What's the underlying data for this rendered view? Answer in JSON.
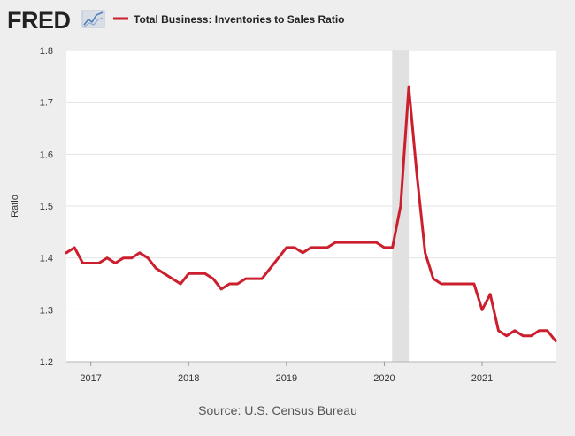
{
  "header": {
    "logo_text": "FRED",
    "logo_icon": "fred-chart-icon",
    "line_color": "#cc1f2d"
  },
  "chart_data": {
    "type": "line",
    "title": "Total Business: Inventories to Sales Ratio",
    "xlabel": "",
    "ylabel": "Ratio",
    "source": "Source: U.S. Census Bureau",
    "ylim": [
      1.2,
      1.8
    ],
    "yticks": [
      1.2,
      1.3,
      1.4,
      1.5,
      1.6,
      1.7,
      1.8
    ],
    "ytick_labels": [
      "1.2",
      "1.3",
      "1.4",
      "1.5",
      "1.6",
      "1.7",
      "1.8"
    ],
    "xlim": [
      2016.75,
      2021.75
    ],
    "xticks": [
      2017,
      2018,
      2019,
      2020,
      2021
    ],
    "xtick_labels": [
      "2017",
      "2018",
      "2019",
      "2020",
      "2021"
    ],
    "grid": true,
    "recession_shading": [
      {
        "start": 2020.08,
        "end": 2020.25
      }
    ],
    "series": [
      {
        "name": "Total Business: Inventories to Sales Ratio",
        "color": "#cc1f2d",
        "x": [
          2016.75,
          2016.833,
          2016.917,
          2017.0,
          2017.083,
          2017.167,
          2017.25,
          2017.333,
          2017.417,
          2017.5,
          2017.583,
          2017.667,
          2017.75,
          2017.833,
          2017.917,
          2018.0,
          2018.083,
          2018.167,
          2018.25,
          2018.333,
          2018.417,
          2018.5,
          2018.583,
          2018.667,
          2018.75,
          2018.833,
          2018.917,
          2019.0,
          2019.083,
          2019.167,
          2019.25,
          2019.333,
          2019.417,
          2019.5,
          2019.583,
          2019.667,
          2019.75,
          2019.833,
          2019.917,
          2020.0,
          2020.083,
          2020.167,
          2020.25,
          2020.333,
          2020.417,
          2020.5,
          2020.583,
          2020.667,
          2020.75,
          2020.833,
          2020.917,
          2021.0,
          2021.083,
          2021.167,
          2021.25,
          2021.333,
          2021.417,
          2021.5,
          2021.583,
          2021.667,
          2021.75
        ],
        "values": [
          1.41,
          1.42,
          1.39,
          1.39,
          1.39,
          1.4,
          1.39,
          1.4,
          1.4,
          1.41,
          1.4,
          1.38,
          1.37,
          1.36,
          1.35,
          1.37,
          1.37,
          1.37,
          1.36,
          1.34,
          1.35,
          1.35,
          1.36,
          1.36,
          1.36,
          1.38,
          1.4,
          1.42,
          1.42,
          1.41,
          1.42,
          1.42,
          1.42,
          1.43,
          1.43,
          1.43,
          1.43,
          1.43,
          1.43,
          1.42,
          1.42,
          1.5,
          1.73,
          1.56,
          1.41,
          1.36,
          1.35,
          1.35,
          1.35,
          1.35,
          1.35,
          1.3,
          1.33,
          1.26,
          1.25,
          1.26,
          1.25,
          1.25,
          1.26,
          1.26,
          1.24
        ]
      }
    ]
  }
}
